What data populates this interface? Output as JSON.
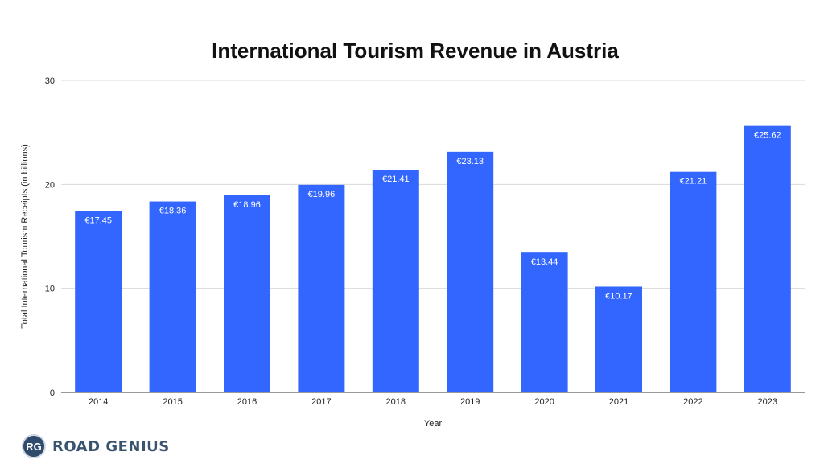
{
  "chart_data": {
    "type": "bar",
    "title": "International Tourism Revenue in Austria",
    "xlabel": "Year",
    "ylabel": "Total International Tourism Receipts (in billions)",
    "categories": [
      "2014",
      "2015",
      "2016",
      "2017",
      "2018",
      "2019",
      "2020",
      "2021",
      "2022",
      "2023"
    ],
    "values": [
      17.45,
      18.36,
      18.96,
      19.96,
      21.41,
      23.13,
      13.44,
      10.17,
      21.21,
      25.62
    ],
    "data_labels": [
      "€17.45",
      "€18.36",
      "€18.96",
      "€19.96",
      "€21.41",
      "€23.13",
      "€13.44",
      "€10.17",
      "€21.21",
      "€25.62"
    ],
    "ylim": [
      0,
      30
    ],
    "yticks": [
      "0",
      "10",
      "20",
      "30"
    ],
    "grid": true,
    "bar_color": "#3366ff"
  },
  "brand": {
    "badge": "RG",
    "name": "ROAD GENIUS"
  }
}
